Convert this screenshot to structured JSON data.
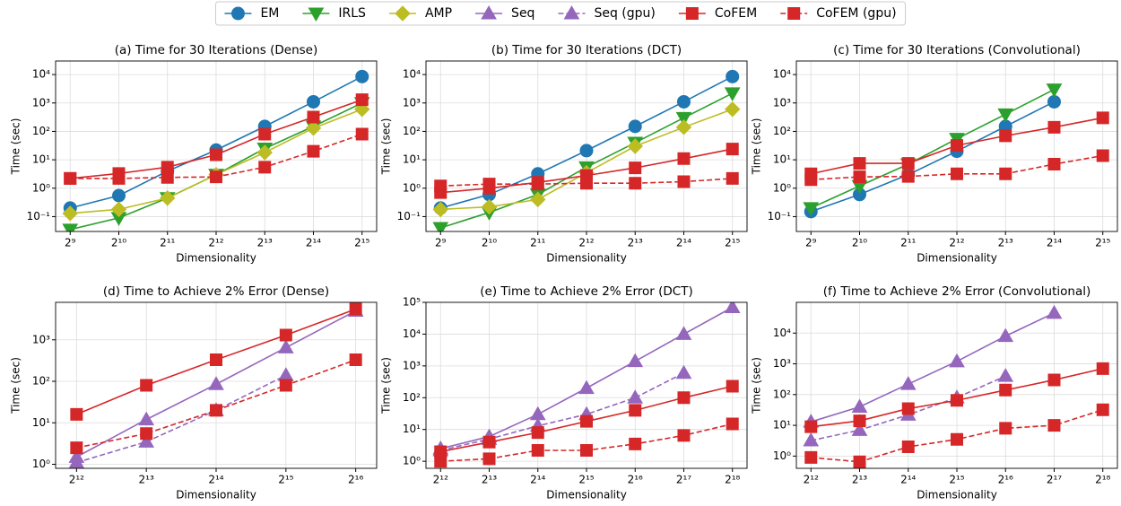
{
  "chart_data": [
    {
      "type": "line",
      "title": "(a) Time for 30 Iterations (Dense)",
      "x_label": "Dimensionality",
      "y_label": "Time (sec)",
      "yscale": "log",
      "xscale": "log",
      "grid": true,
      "x": [
        512,
        1024,
        2048,
        4096,
        8192,
        16384,
        32768
      ],
      "xlim": [
        416,
        40342
      ],
      "ylim": [
        0.03,
        30000
      ],
      "xticks": [
        {
          "value": 512,
          "label": "2⁹"
        },
        {
          "value": 1024,
          "label": "2¹⁰"
        },
        {
          "value": 2048,
          "label": "2¹¹"
        },
        {
          "value": 4096,
          "label": "2¹²"
        },
        {
          "value": 8192,
          "label": "2¹³"
        },
        {
          "value": 16384,
          "label": "2¹⁴"
        },
        {
          "value": 32768,
          "label": "2¹⁵"
        }
      ],
      "yticks": [
        {
          "value": 0.1,
          "label": "10⁻¹"
        },
        {
          "value": 1,
          "label": "10⁰"
        },
        {
          "value": 10,
          "label": "10¹"
        },
        {
          "value": 100,
          "label": "10²"
        },
        {
          "value": 1000,
          "label": "10³"
        },
        {
          "value": 10000,
          "label": "10⁴"
        }
      ],
      "series": [
        {
          "name": "EM",
          "color": "#1f77b4",
          "marker": "circle",
          "linestyle": "solid",
          "values": [
            0.2,
            0.55,
            4,
            22,
            150,
            1100,
            8500
          ]
        },
        {
          "name": "IRLS",
          "color": "#2ca02c",
          "marker": "triangle-down",
          "linestyle": "solid",
          "values": [
            0.035,
            0.09,
            0.45,
            3,
            25,
            150,
            1000
          ]
        },
        {
          "name": "AMP",
          "color": "#bcbd22",
          "marker": "diamond",
          "linestyle": "solid",
          "values": [
            0.13,
            0.18,
            0.45,
            3,
            18,
            130,
            600
          ]
        },
        {
          "name": "CoFEM",
          "color": "#d62728",
          "marker": "square",
          "linestyle": "solid",
          "values": [
            2.2,
            3.3,
            5.5,
            15,
            80,
            320,
            1300
          ]
        },
        {
          "name": "CoFEM (gpu)",
          "color": "#d62728",
          "marker": "square",
          "linestyle": "dashed",
          "values": [
            2.2,
            2.2,
            2.4,
            2.5,
            5.5,
            20,
            80
          ]
        }
      ]
    },
    {
      "type": "line",
      "title": "(b) Time for 30 Iterations (DCT)",
      "x_label": "Dimensionality",
      "y_label": "Time (sec)",
      "yscale": "log",
      "xscale": "log",
      "grid": true,
      "x": [
        512,
        1024,
        2048,
        4096,
        8192,
        16384,
        32768
      ],
      "xlim": [
        416,
        40342
      ],
      "ylim": [
        0.03,
        30000
      ],
      "xticks": [
        {
          "value": 512,
          "label": "2⁹"
        },
        {
          "value": 1024,
          "label": "2¹⁰"
        },
        {
          "value": 2048,
          "label": "2¹¹"
        },
        {
          "value": 4096,
          "label": "2¹²"
        },
        {
          "value": 8192,
          "label": "2¹³"
        },
        {
          "value": 16384,
          "label": "2¹⁴"
        },
        {
          "value": 32768,
          "label": "2¹⁵"
        }
      ],
      "yticks": [
        {
          "value": 0.1,
          "label": "10⁻¹"
        },
        {
          "value": 1,
          "label": "10⁰"
        },
        {
          "value": 10,
          "label": "10¹"
        },
        {
          "value": 100,
          "label": "10²"
        },
        {
          "value": 1000,
          "label": "10³"
        },
        {
          "value": 10000,
          "label": "10⁴"
        }
      ],
      "series": [
        {
          "name": "EM",
          "color": "#1f77b4",
          "marker": "circle",
          "linestyle": "solid",
          "values": [
            0.2,
            0.6,
            3.2,
            21,
            150,
            1100,
            8500
          ]
        },
        {
          "name": "IRLS",
          "color": "#2ca02c",
          "marker": "triangle-down",
          "linestyle": "solid",
          "values": [
            0.04,
            0.14,
            0.6,
            5.5,
            40,
            300,
            2200
          ]
        },
        {
          "name": "AMP",
          "color": "#bcbd22",
          "marker": "diamond",
          "linestyle": "solid",
          "values": [
            0.18,
            0.22,
            0.4,
            3.5,
            30,
            140,
            600
          ]
        },
        {
          "name": "CoFEM",
          "color": "#d62728",
          "marker": "square",
          "linestyle": "solid",
          "values": [
            0.7,
            1.0,
            1.6,
            2.8,
            5.2,
            11,
            24
          ]
        },
        {
          "name": "CoFEM (gpu)",
          "color": "#d62728",
          "marker": "square",
          "linestyle": "dashed",
          "values": [
            1.2,
            1.4,
            1.4,
            1.5,
            1.5,
            1.7,
            2.2
          ]
        }
      ]
    },
    {
      "type": "line",
      "title": "(c) Time for 30 Iterations (Convolutional)",
      "x_label": "Dimensionality",
      "y_label": "Time (sec)",
      "yscale": "log",
      "xscale": "log",
      "grid": true,
      "x": [
        512,
        1024,
        2048,
        4096,
        8192,
        16384,
        32768
      ],
      "xlim": [
        416,
        40342
      ],
      "ylim": [
        0.03,
        30000
      ],
      "xticks": [
        {
          "value": 512,
          "label": "2⁹"
        },
        {
          "value": 1024,
          "label": "2¹⁰"
        },
        {
          "value": 2048,
          "label": "2¹¹"
        },
        {
          "value": 4096,
          "label": "2¹²"
        },
        {
          "value": 8192,
          "label": "2¹³"
        },
        {
          "value": 16384,
          "label": "2¹⁴"
        },
        {
          "value": 32768,
          "label": "2¹⁵"
        }
      ],
      "yticks": [
        {
          "value": 0.1,
          "label": "10⁻¹"
        },
        {
          "value": 1,
          "label": "10⁰"
        },
        {
          "value": 10,
          "label": "10¹"
        },
        {
          "value": 100,
          "label": "10²"
        },
        {
          "value": 1000,
          "label": "10³"
        },
        {
          "value": 10000,
          "label": "10⁴"
        }
      ],
      "series": [
        {
          "name": "EM",
          "color": "#1f77b4",
          "marker": "circle",
          "linestyle": "solid",
          "values": [
            0.15,
            0.6,
            3,
            20,
            150,
            1100,
            null
          ]
        },
        {
          "name": "IRLS",
          "color": "#2ca02c",
          "marker": "triangle-down",
          "linestyle": "solid",
          "values": [
            0.2,
            1.2,
            7,
            55,
            400,
            3000,
            null
          ]
        },
        {
          "name": "CoFEM",
          "color": "#d62728",
          "marker": "square",
          "linestyle": "solid",
          "values": [
            3.2,
            7.5,
            7.5,
            32,
            70,
            140,
            300
          ]
        },
        {
          "name": "CoFEM (gpu)",
          "color": "#d62728",
          "marker": "square",
          "linestyle": "dashed",
          "values": [
            2,
            2.5,
            2.6,
            3.2,
            3.2,
            7,
            14
          ]
        }
      ]
    },
    {
      "type": "line",
      "title": "(d) Time to Achieve 2% Error (Dense)",
      "x_label": "Dimensionality",
      "y_label": "Time (sec)",
      "yscale": "log",
      "xscale": "log",
      "grid": true,
      "x": [
        4096,
        8192,
        16384,
        32768,
        65536
      ],
      "xlim": [
        3327,
        80684
      ],
      "ylim": [
        0.8,
        8000
      ],
      "xticks": [
        {
          "value": 4096,
          "label": "2¹²"
        },
        {
          "value": 8192,
          "label": "2¹³"
        },
        {
          "value": 16384,
          "label": "2¹⁴"
        },
        {
          "value": 32768,
          "label": "2¹⁵"
        },
        {
          "value": 65536,
          "label": "2¹⁶"
        }
      ],
      "yticks": [
        {
          "value": 1,
          "label": "10⁰"
        },
        {
          "value": 10,
          "label": "10¹"
        },
        {
          "value": 100,
          "label": "10²"
        },
        {
          "value": 1000,
          "label": "10³"
        }
      ],
      "series": [
        {
          "name": "Seq",
          "color": "#9467bd",
          "marker": "triangle-up",
          "linestyle": "solid",
          "values": [
            1.5,
            12,
            85,
            650,
            5000
          ]
        },
        {
          "name": "Seq (gpu)",
          "color": "#9467bd",
          "marker": "triangle-up",
          "linestyle": "dashed",
          "values": [
            1.1,
            3.5,
            20,
            140,
            null
          ]
        },
        {
          "name": "CoFEM",
          "color": "#d62728",
          "marker": "square",
          "linestyle": "solid",
          "values": [
            16,
            80,
            330,
            1300,
            5500
          ]
        },
        {
          "name": "CoFEM (gpu)",
          "color": "#d62728",
          "marker": "square",
          "linestyle": "dashed",
          "values": [
            2.5,
            5.5,
            20,
            80,
            330
          ]
        }
      ]
    },
    {
      "type": "line",
      "title": "(e) Time to Achieve 2% Error (DCT)",
      "x_label": "Dimensionality",
      "y_label": "Time (sec)",
      "yscale": "log",
      "xscale": "log",
      "grid": true,
      "x": [
        4096,
        8192,
        16384,
        32768,
        65536,
        131072,
        262144
      ],
      "xlim": [
        3327,
        322737
      ],
      "ylim": [
        0.6,
        100000
      ],
      "xticks": [
        {
          "value": 4096,
          "label": "2¹²"
        },
        {
          "value": 8192,
          "label": "2¹³"
        },
        {
          "value": 16384,
          "label": "2¹⁴"
        },
        {
          "value": 32768,
          "label": "2¹⁵"
        },
        {
          "value": 65536,
          "label": "2¹⁶"
        },
        {
          "value": 131072,
          "label": "2¹⁷"
        },
        {
          "value": 262144,
          "label": "2¹⁸"
        }
      ],
      "yticks": [
        {
          "value": 1,
          "label": "10⁰"
        },
        {
          "value": 10,
          "label": "10¹"
        },
        {
          "value": 100,
          "label": "10²"
        },
        {
          "value": 1000,
          "label": "10³"
        },
        {
          "value": 10000,
          "label": "10⁴"
        },
        {
          "value": 100000,
          "label": "10⁵"
        }
      ],
      "series": [
        {
          "name": "Seq",
          "color": "#9467bd",
          "marker": "triangle-up",
          "linestyle": "solid",
          "values": [
            2.5,
            6,
            30,
            200,
            1400,
            10000,
            70000
          ]
        },
        {
          "name": "Seq (gpu)",
          "color": "#9467bd",
          "marker": "triangle-up",
          "linestyle": "dashed",
          "values": [
            2.2,
            5,
            13,
            30,
            100,
            600,
            null
          ]
        },
        {
          "name": "CoFEM",
          "color": "#d62728",
          "marker": "square",
          "linestyle": "solid",
          "values": [
            2,
            4,
            8,
            18,
            40,
            100,
            230
          ]
        },
        {
          "name": "CoFEM (gpu)",
          "color": "#d62728",
          "marker": "square",
          "linestyle": "dashed",
          "values": [
            1,
            1.2,
            2.2,
            2.2,
            3.5,
            6.5,
            15
          ]
        }
      ]
    },
    {
      "type": "line",
      "title": "(f) Time to Achieve 2% Error (Convolutional)",
      "x_label": "Dimensionality",
      "y_label": "Time (sec)",
      "yscale": "log",
      "xscale": "log",
      "grid": true,
      "x": [
        4096,
        8192,
        16384,
        32768,
        65536,
        131072,
        262144
      ],
      "xlim": [
        3327,
        322737
      ],
      "ylim": [
        0.4,
        100000
      ],
      "xticks": [
        {
          "value": 4096,
          "label": "2¹²"
        },
        {
          "value": 8192,
          "label": "2¹³"
        },
        {
          "value": 16384,
          "label": "2¹⁴"
        },
        {
          "value": 32768,
          "label": "2¹⁵"
        },
        {
          "value": 65536,
          "label": "2¹⁶"
        },
        {
          "value": 131072,
          "label": "2¹⁷"
        },
        {
          "value": 262144,
          "label": "2¹⁸"
        }
      ],
      "yticks": [
        {
          "value": 1,
          "label": "10⁰"
        },
        {
          "value": 10,
          "label": "10¹"
        },
        {
          "value": 100,
          "label": "10²"
        },
        {
          "value": 1000,
          "label": "10³"
        },
        {
          "value": 10000,
          "label": "10⁴"
        }
      ],
      "series": [
        {
          "name": "Seq",
          "color": "#9467bd",
          "marker": "triangle-up",
          "linestyle": "solid",
          "values": [
            13,
            40,
            220,
            1200,
            8000,
            45000,
            null
          ]
        },
        {
          "name": "Seq (gpu)",
          "color": "#9467bd",
          "marker": "triangle-up",
          "linestyle": "dashed",
          "values": [
            3.2,
            7,
            22,
            80,
            400,
            null,
            null
          ]
        },
        {
          "name": "CoFEM",
          "color": "#d62728",
          "marker": "square",
          "linestyle": "solid",
          "values": [
            9,
            14,
            35,
            65,
            140,
            300,
            700
          ]
        },
        {
          "name": "CoFEM (gpu)",
          "color": "#d62728",
          "marker": "square",
          "linestyle": "dashed",
          "values": [
            0.9,
            0.65,
            2,
            3.5,
            8,
            10,
            32
          ]
        }
      ]
    }
  ]
}
